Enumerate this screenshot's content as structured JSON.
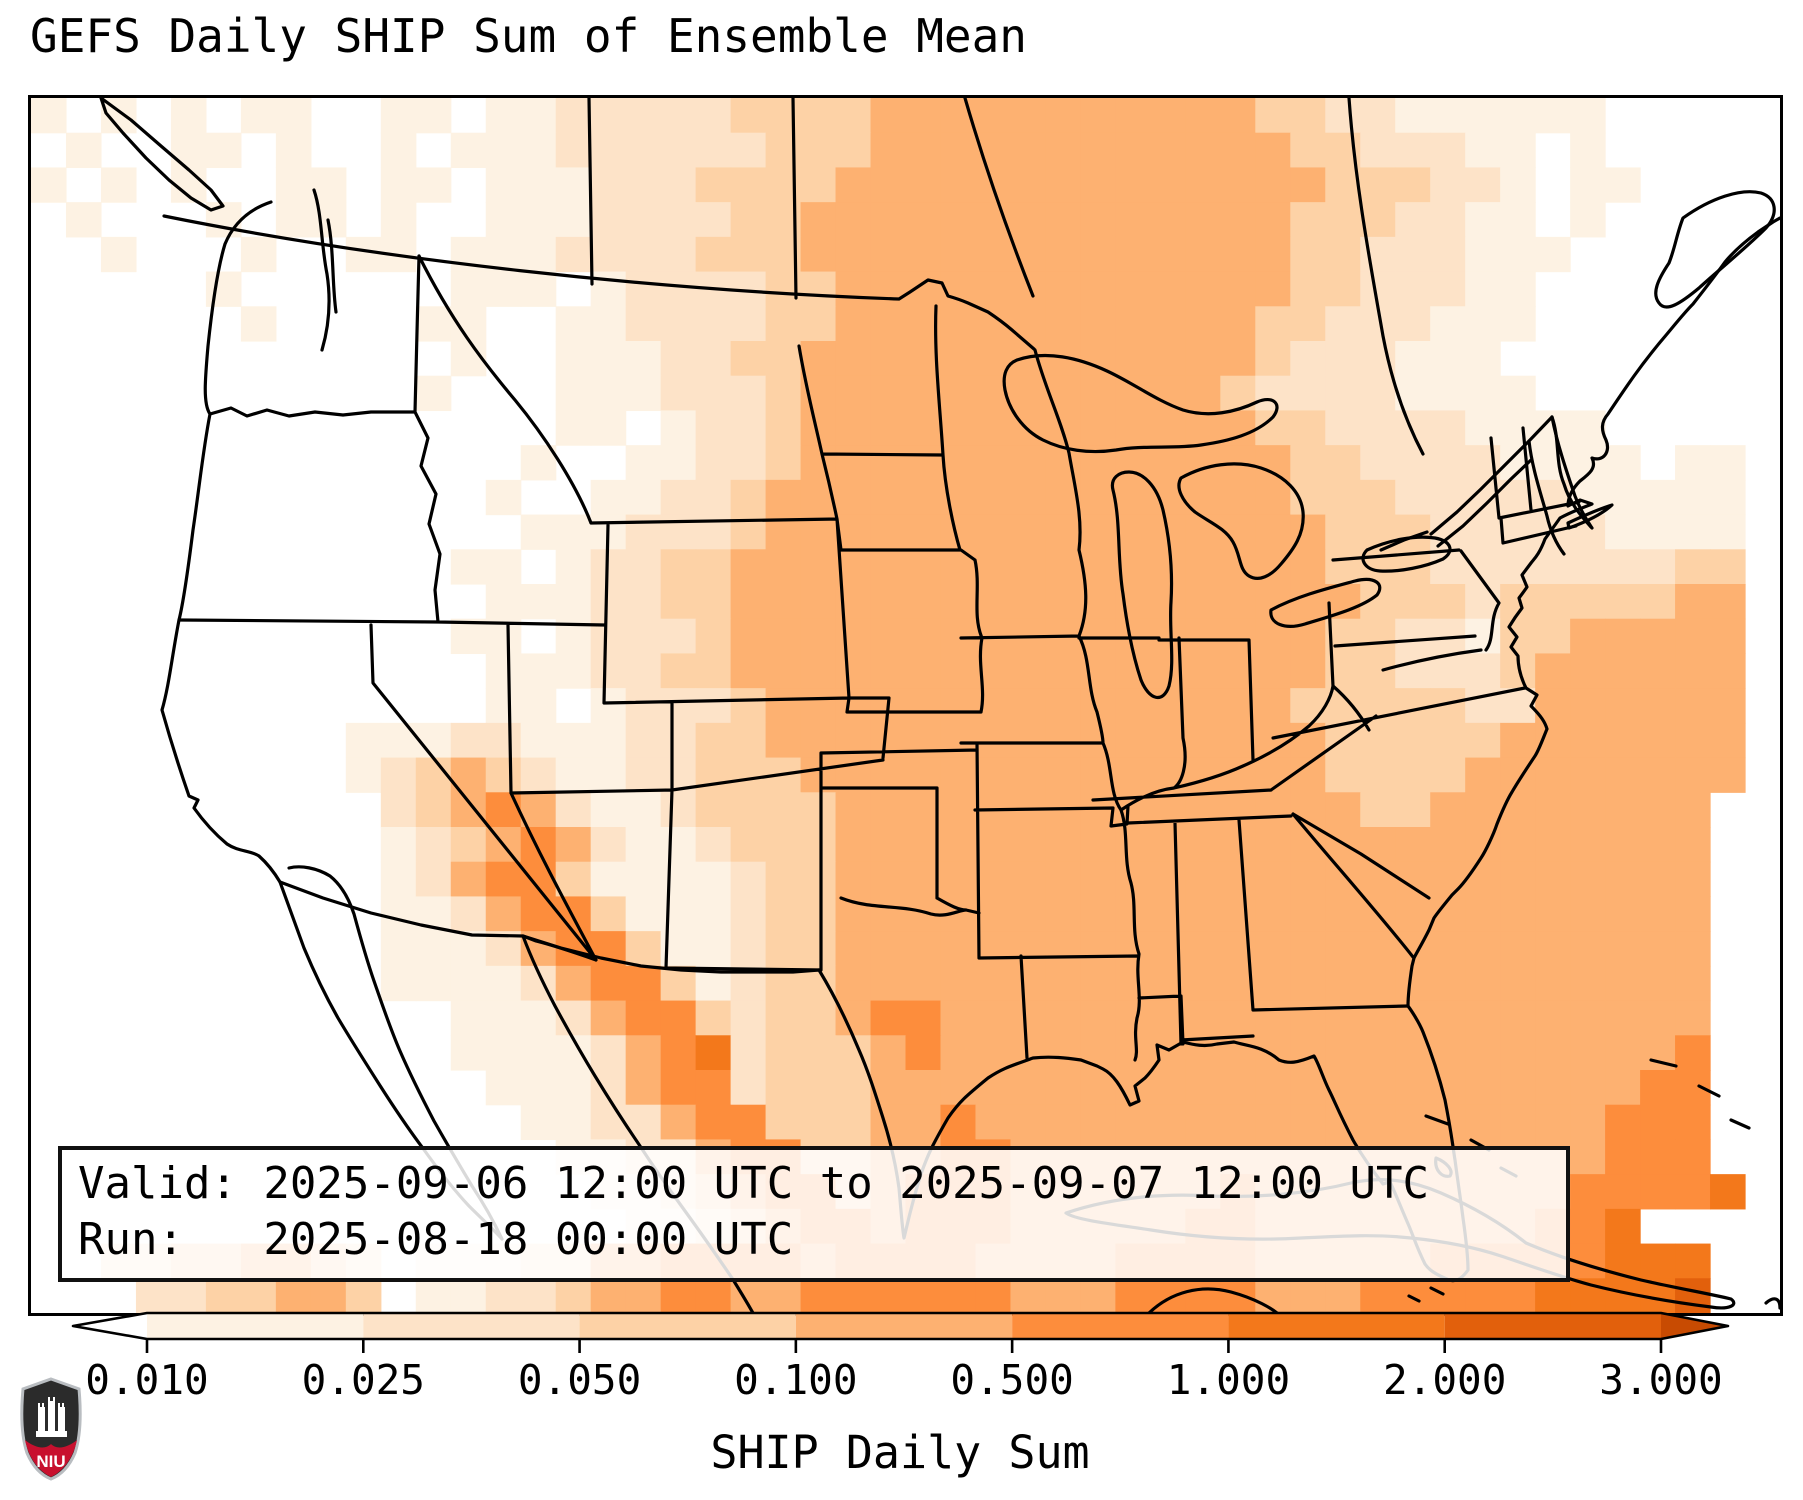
{
  "title": "GEFS Daily SHIP Sum of Ensemble Mean",
  "info": {
    "valid_line": "Valid: 2025-09-06 12:00 UTC to 2025-09-07 12:00 UTC",
    "run_line": "Run:   2025-08-18 00:00 UTC"
  },
  "colorbar": {
    "axis_label": "SHIP Daily Sum",
    "tick_labels": [
      "0.010",
      "0.025",
      "0.050",
      "0.100",
      "0.500",
      "1.000",
      "2.000",
      "3.000"
    ],
    "tick_values": [
      0.01,
      0.025,
      0.05,
      0.1,
      0.5,
      1.0,
      2.0,
      3.0
    ],
    "segment_colors": [
      "#fdf2e3",
      "#fde3c8",
      "#fdd2a6",
      "#fdb171",
      "#fd8d3c",
      "#f3781b",
      "#e2600c"
    ],
    "under_color": "#ffffff",
    "over_color": "#c84b02",
    "outline_color": "#000000"
  },
  "logo": {
    "text": "NIU",
    "shield_dark": "#2b2b2b",
    "shield_red": "#c8102e",
    "shield_trim": "#b9bdc1"
  },
  "chart_data": {
    "type": "heatmap",
    "title": "GEFS Daily SHIP Sum of Ensemble Mean",
    "legend_label": "SHIP Daily Sum",
    "valid": "2025-09-06 12:00 UTC to 2025-09-07 12:00 UTC",
    "run": "2025-08-18 00:00 UTC",
    "bin_edges": [
      0.01,
      0.025,
      0.05,
      0.1,
      0.5,
      1.0,
      2.0,
      3.0
    ],
    "extend": "both",
    "region": "CONUS with southern Canada, Mexico, Gulf of Mexico, western Atlantic, Caribbean",
    "level_chars": {
      ".": "<0.01",
      "1": "0.01-0.025",
      "2": "0.025-0.05",
      "3": "0.05-0.1",
      "4": "0.1-0.5",
      "5": "0.5-1.0",
      "6": "1.0-2.0",
      "7": "2.0-3.0"
    },
    "grid_cols": 50,
    "grid_rows": 35,
    "grid": [
      "1.1.1.11..11.11222223333444444444443322111111....",
      ".1..11.1..1.111222222333444444444444332221 1.1....",
      "1.1.1..11.11.111222333344444444444444333221.11....",
      ".1...1.11.1..111222233444444444444443332211.1.....",
      "..1...1..11.111222233344444444444444332221 11.....",
      ".....1......111.12222334444444444444332221 1......",
      "......1....11..112222334444444444443322211 1......",
      "............1..111223344444444444443222111........",
      "...........1...111222344444444444432222111 1......",
      "...............11.1223444444444444433222211 11....",
      "..............1..11223444444444444443322221 111.11",
      ".............1..112234444444444444443332222211 111",
      "..............11122234444444444444444333222221111 ",
      "............11.122334444444444444444433322222223 3",
      ".............111223344444444444444444433323333344 ",
      "............11.1222344444444444444444332213344444 ",
      ".............11122334444444444444444433222344444 4",
      ".............11.12223444444444444444333332244444 4",
      ".........111221112233444444444444444433333444444 4",
      ".........1234321122333444444444444444333344444444",
      "..........2345421123333444444444444444334444444 4",
      "..........1234542112333444444444444444444444444 4",
      "..........1245531111233444444444444444444444444 4",
      "..........1124553111233444444444444444444444444 4",
      "..........1112455311233444444444444444444444444 4",
      "..........1111245531233444444444444444444444444 4",
      "............11124553233455444444444444444444444 4",
      "............11112456233345444444444444444444444 5",
      ".............11124552333444444444444444444444455 ",
      "..............11224553334454444444444444444445 55",
      ".............. .11224553344554444444444444444455 5",
      "...............  .11234553455544444454444444445555 6",
      "................  .1123455455544444554444444455 6..",
      "..22334432.1112244555545555444455554444455555666..",
      "...2233443.1122344554455555544455554445555566667.."
    ],
    "grid_note": "rows are cleaned by renderer: whitespace stripped, padded/truncated to 50 chars"
  }
}
